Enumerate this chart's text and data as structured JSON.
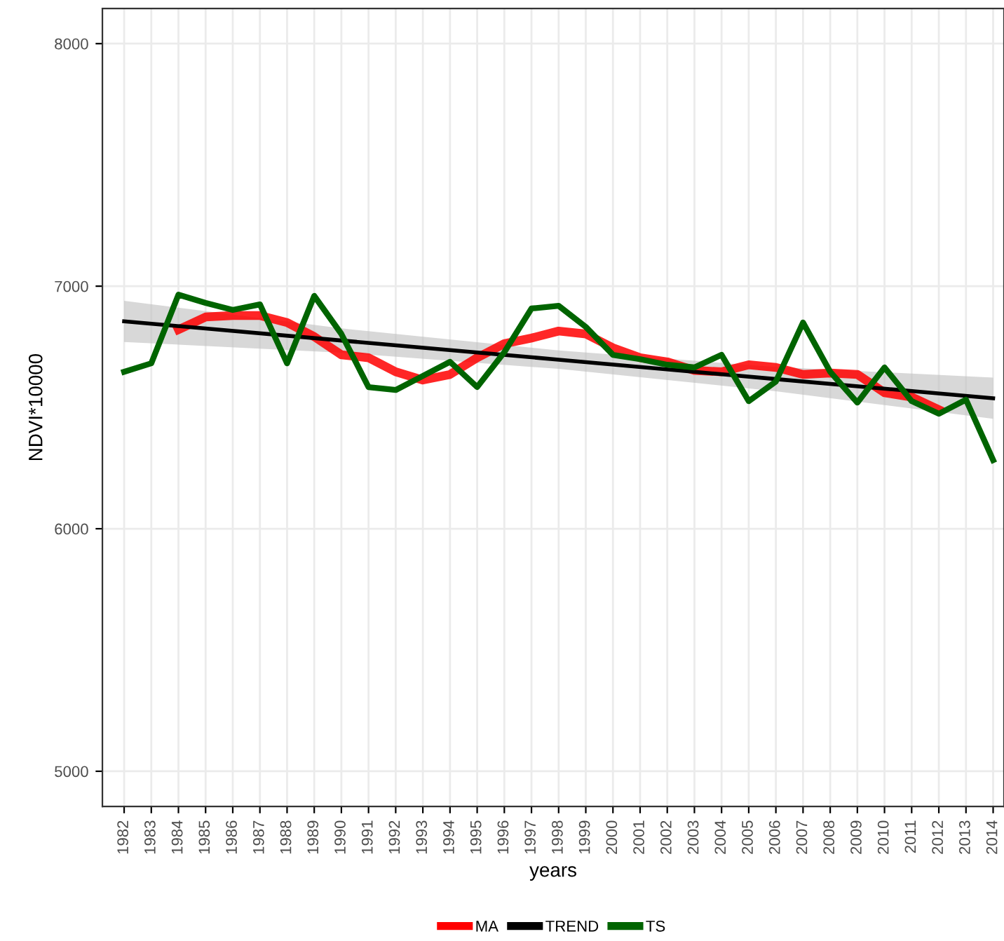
{
  "chart_data": {
    "type": "line",
    "xlabel": "years",
    "ylabel": "NDVI*10000",
    "xlim": [
      1981.2,
      2014.4
    ],
    "ylim": [
      4855,
      8145
    ],
    "xticks": [
      1982,
      1983,
      1984,
      1985,
      1986,
      1987,
      1988,
      1989,
      1990,
      1991,
      1992,
      1993,
      1994,
      1995,
      1996,
      1997,
      1998,
      1999,
      2000,
      2001,
      2002,
      2003,
      2004,
      2005,
      2006,
      2007,
      2008,
      2009,
      2010,
      2011,
      2012,
      2013,
      2014
    ],
    "yticks": [
      5000,
      6000,
      7000,
      8000
    ],
    "grid": true,
    "legend": "bottom",
    "marker": "none",
    "line_style": "solid",
    "series": [
      {
        "name": "MA",
        "color": "#ff0000",
        "x": [
          1984,
          1985,
          1986,
          1987,
          1988,
          1989,
          1990,
          1991,
          1992,
          1993,
          1994,
          1995,
          1996,
          1997,
          1998,
          1999,
          2000,
          2001,
          2002,
          2003,
          2004,
          2005,
          2006,
          2007,
          2008,
          2009,
          2010,
          2011,
          2012
        ],
        "values": [
          6821,
          6873,
          6879,
          6879,
          6850,
          6792,
          6717,
          6705,
          6647,
          6613,
          6636,
          6705,
          6763,
          6786,
          6815,
          6803,
          6746,
          6705,
          6688,
          6653,
          6647,
          6676,
          6665,
          6636,
          6642,
          6636,
          6561,
          6543,
          6491
        ]
      },
      {
        "name": "TREND",
        "color": "#000000",
        "x": [
          1982,
          1990,
          1998,
          2006,
          2014
        ],
        "values": [
          6855,
          6776,
          6697,
          6617,
          6538
        ],
        "lower": [
          6770,
          6726,
          6659,
          6567,
          6453
        ],
        "upper": [
          6940,
          6826,
          6735,
          6667,
          6623
        ]
      },
      {
        "name": "TS",
        "color": "#006400",
        "x": [
          1982,
          1983,
          1984,
          1985,
          1986,
          1987,
          1988,
          1989,
          1990,
          1991,
          1992,
          1993,
          1994,
          1995,
          1996,
          1997,
          1998,
          1999,
          2000,
          2001,
          2002,
          2003,
          2004,
          2005,
          2006,
          2007,
          2008,
          2009,
          2010,
          2011,
          2012,
          2013,
          2014
        ],
        "values": [
          6647,
          6682,
          6965,
          6931,
          6902,
          6925,
          6682,
          6960,
          6803,
          6584,
          6572,
          6630,
          6688,
          6584,
          6728,
          6908,
          6919,
          6832,
          6717,
          6699,
          6676,
          6665,
          6717,
          6526,
          6607,
          6850,
          6647,
          6520,
          6665,
          6526,
          6474,
          6532,
          6283
        ]
      }
    ]
  }
}
